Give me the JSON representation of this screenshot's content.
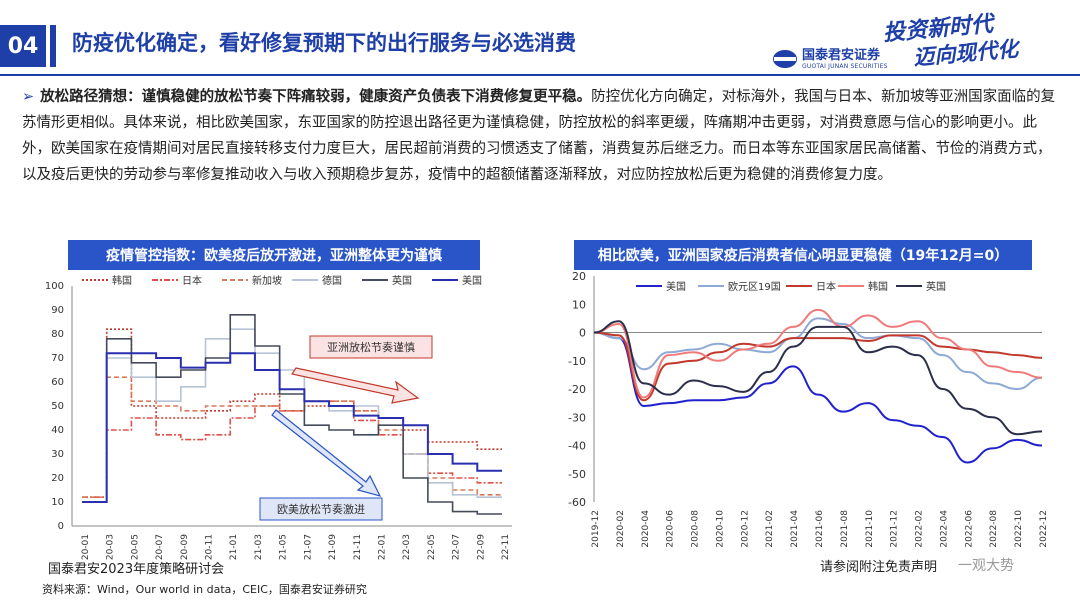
{
  "header": {
    "number": "04",
    "title": "防疫优化确定，看好修复预期下的出行服务与必选消费",
    "logo_cn": "国泰君安证券",
    "logo_en": "GUOTAI JUNAN SECURITIES",
    "slogan_line1": "投资新时代",
    "slogan_line2": "迈向现代化"
  },
  "body": {
    "bullet_bold": "放松路径猜想：谨慎稳健的放松节奏下阵痛较弱，健康资产负债表下消费修复更平稳。",
    "bullet_text": "防控优化方向确定，对标海外，我国与日本、新加坡等亚洲国家面临的复苏情形更相似。具体来说，相比欧美国家，东亚国家的防控退出路径更为谨慎稳健，防控放松的斜率更缓，阵痛期冲击更弱，对消费意愿与信心的影响更小。此外，欧美国家在疫情期间对居民直接转移支付力度巨大，居民超前消费的习惯透支了储蓄，消费复苏后继乏力。而日本等东亚国家居民高储蓄、节俭的消费方式，以及疫后更快的劳动参与率修复推动收入与收入预期稳步复苏，疫情中的超额储蓄逐渐释放，对应防控放松后更为稳健的消费修复力度。"
  },
  "chart_data": [
    {
      "type": "line",
      "title": "疫情管控指数：欧美疫后放开激进，亚洲整体更为谨慎",
      "ylim": [
        0,
        100
      ],
      "yticks": [
        0,
        10,
        20,
        30,
        40,
        50,
        60,
        70,
        80,
        90,
        100
      ],
      "categories": [
        "20-01",
        "20-03",
        "20-05",
        "20-07",
        "20-09",
        "20-11",
        "21-01",
        "21-03",
        "21-05",
        "21-07",
        "21-09",
        "21-11",
        "22-01",
        "22-03",
        "22-05",
        "22-07",
        "22-09",
        "22-11"
      ],
      "annotations": [
        "亚洲放松节奏谨慎",
        "欧美放松节奏激进"
      ],
      "series": [
        {
          "name": "韩国",
          "color": "#c0392b",
          "style": "dotted",
          "values": [
            12,
            82,
            50,
            45,
            45,
            48,
            52,
            55,
            48,
            50,
            50,
            48,
            45,
            40,
            35,
            35,
            32,
            32
          ]
        },
        {
          "name": "日本",
          "color": "#e0504a",
          "style": "dashdot",
          "values": [
            12,
            40,
            45,
            38,
            36,
            38,
            45,
            50,
            48,
            52,
            52,
            44,
            38,
            30,
            22,
            20,
            18,
            18
          ]
        },
        {
          "name": "新加坡",
          "color": "#d97a5a",
          "style": "dashed",
          "values": [
            12,
            62,
            52,
            50,
            48,
            50,
            50,
            50,
            48,
            52,
            52,
            48,
            40,
            30,
            20,
            15,
            13,
            13
          ]
        },
        {
          "name": "德国",
          "color": "#b7c3d6",
          "style": "solid",
          "values": [
            10,
            70,
            62,
            52,
            58,
            78,
            82,
            72,
            65,
            52,
            48,
            50,
            45,
            30,
            18,
            13,
            12,
            12
          ]
        },
        {
          "name": "英国",
          "color": "#454b5a",
          "style": "solid",
          "values": [
            10,
            78,
            68,
            62,
            65,
            70,
            88,
            75,
            55,
            42,
            40,
            38,
            42,
            20,
            10,
            6,
            5,
            5
          ]
        },
        {
          "name": "美国",
          "color": "#2a2fb0",
          "style": "solid",
          "values": [
            10,
            72,
            72,
            70,
            66,
            68,
            72,
            65,
            57,
            52,
            50,
            46,
            45,
            42,
            30,
            26,
            23,
            23
          ]
        }
      ]
    },
    {
      "type": "line",
      "title": "相比欧美，亚洲国家疫后消费者信心明显更稳健（19年12月=0）",
      "ylim": [
        -60,
        20
      ],
      "yticks": [
        20,
        10,
        0,
        -10,
        -20,
        -30,
        -40,
        -50,
        -60
      ],
      "categories": [
        "2019-12",
        "2020-02",
        "2020-04",
        "2020-06",
        "2020-08",
        "2020-10",
        "2020-12",
        "2021-02",
        "2021-04",
        "2021-06",
        "2021-08",
        "2021-10",
        "2021-12",
        "2022-02",
        "2022-04",
        "2022-06",
        "2022-08",
        "2022-10",
        "2022-12"
      ],
      "series": [
        {
          "name": "美国",
          "color": "#2222cc",
          "values": [
            0,
            -2,
            -26,
            -25,
            -24,
            -24,
            -23,
            -18,
            -12,
            -22,
            -28,
            -25,
            -31,
            -33,
            -37,
            -46,
            -41,
            -38,
            -40
          ]
        },
        {
          "name": "欧元区19国",
          "color": "#8fa9d6",
          "values": [
            0,
            -2,
            -13,
            -7,
            -6,
            -4,
            -6,
            -7,
            -2,
            5,
            3,
            -2,
            -1,
            -2,
            -8,
            -14,
            -18,
            -20,
            -16
          ]
        },
        {
          "name": "日本",
          "color": "#c0392b",
          "values": [
            0,
            -1,
            -24,
            -11,
            -10,
            -7,
            -4,
            -5,
            -2,
            -2,
            -2,
            -3,
            -1,
            -1,
            -5,
            -6,
            -7,
            -8,
            -9
          ]
        },
        {
          "name": "韩国",
          "color": "#f07a7a",
          "values": [
            0,
            3,
            -23,
            -8,
            -7,
            -10,
            -6,
            -4,
            2,
            8,
            2,
            6,
            2,
            4,
            -2,
            -6,
            -12,
            -14,
            -16
          ]
        },
        {
          "name": "英国",
          "color": "#2b2f4a",
          "values": [
            0,
            4,
            -18,
            -22,
            -17,
            -19,
            -21,
            -14,
            -5,
            2,
            2,
            -7,
            -5,
            -8,
            -20,
            -27,
            -30,
            -36,
            -35
          ]
        }
      ]
    }
  ],
  "footer": {
    "conference": "国泰君安2023年度策略研讨会",
    "source": "资料来源：Wind，Our world in data，CEIC，国泰君安证券研究",
    "note": "请参阅附注免责声明",
    "watermark": "一观大势"
  }
}
